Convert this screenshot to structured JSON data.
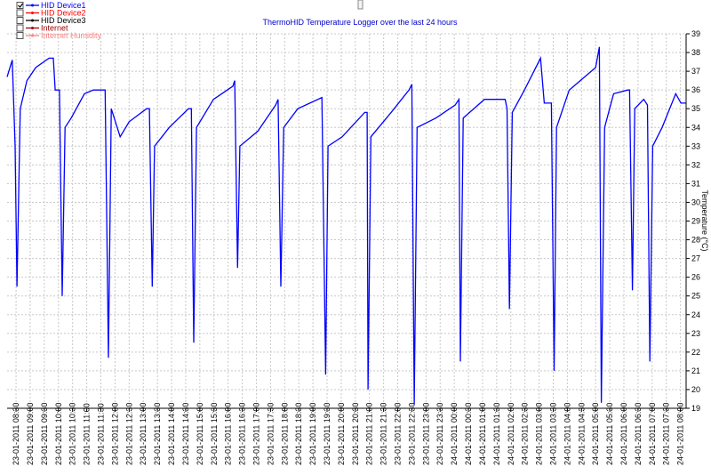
{
  "chart_data": {
    "type": "line",
    "title": "ThermoHID Temperature Logger over the last 24 hours",
    "y_label": "Temperature (°C)",
    "xlim": [
      "23-01-2011 08:11",
      "24-01-2011 08:12"
    ],
    "xticks": [
      "23-01-2011 08:30",
      "23-01-2011 09:00",
      "23-01-2011 09:30",
      "23-01-2011 10:00",
      "23-01-2011 10:30",
      "23-01-2011 11:00",
      "23-01-2011 11:30",
      "23-01-2011 12:00",
      "23-01-2011 12:30",
      "23-01-2011 13:00",
      "23-01-2011 13:30",
      "23-01-2011 14:00",
      "23-01-2011 14:30",
      "23-01-2011 15:00",
      "23-01-2011 15:30",
      "23-01-2011 16:00",
      "23-01-2011 16:30",
      "23-01-2011 17:00",
      "23-01-2011 17:30",
      "23-01-2011 18:00",
      "23-01-2011 18:30",
      "23-01-2011 19:00",
      "23-01-2011 19:30",
      "23-01-2011 20:00",
      "23-01-2011 20:30",
      "23-01-2011 21:00",
      "23-01-2011 21:30",
      "23-01-2011 22:00",
      "23-01-2011 22:30",
      "23-01-2011 23:00",
      "23-01-2011 23:30",
      "24-01-2011 00:00",
      "24-01-2011 00:30",
      "24-01-2011 01:00",
      "24-01-2011 01:30",
      "24-01-2011 02:00",
      "24-01-2011 02:30",
      "24-01-2011 03:00",
      "24-01-2011 03:30",
      "24-01-2011 04:00",
      "24-01-2011 04:30",
      "24-01-2011 05:00",
      "24-01-2011 05:30",
      "24-01-2011 06:00",
      "24-01-2011 06:30",
      "24-01-2011 07:00",
      "24-01-2011 07:30",
      "24-01-2011 08:00"
    ],
    "ylim": [
      19,
      39
    ],
    "yticks": [
      19,
      20,
      21,
      22,
      23,
      24,
      25,
      26,
      27,
      28,
      29,
      30,
      31,
      32,
      33,
      34,
      35,
      36,
      37,
      38,
      39
    ],
    "grid": true,
    "series": [
      {
        "name": "HID Device1",
        "color": "#0000ff",
        "checked": true,
        "x": [
          "23-01-2011 08:11",
          "23-01-2011 08:22",
          "23-01-2011 08:28",
          "23-01-2011 08:32",
          "23-01-2011 08:39",
          "23-01-2011 08:53",
          "23-01-2011 09:12",
          "23-01-2011 09:40",
          "23-01-2011 09:49",
          "23-01-2011 09:53",
          "23-01-2011 10:02",
          "23-01-2011 10:08",
          "23-01-2011 10:14",
          "23-01-2011 10:27",
          "23-01-2011 10:55",
          "23-01-2011 11:14",
          "23-01-2011 11:39",
          "23-01-2011 11:46",
          "23-01-2011 11:52",
          "23-01-2011 12:11",
          "23-01-2011 12:30",
          "23-01-2011 13:07",
          "23-01-2011 13:13",
          "23-01-2011 13:19",
          "23-01-2011 13:24",
          "23-01-2011 13:55",
          "23-01-2011 14:36",
          "23-01-2011 14:42",
          "23-01-2011 14:47",
          "23-01-2011 14:53",
          "23-01-2011 15:29",
          "23-01-2011 16:10",
          "23-01-2011 16:14",
          "23-01-2011 16:20",
          "23-01-2011 16:25",
          "23-01-2011 17:03",
          "23-01-2011 17:41",
          "23-01-2011 17:46",
          "23-01-2011 17:52",
          "23-01-2011 17:58",
          "23-01-2011 18:28",
          "23-01-2011 19:19",
          "23-01-2011 19:27",
          "23-01-2011 19:32",
          "23-01-2011 20:02",
          "23-01-2011 20:50",
          "23-01-2011 20:55",
          "23-01-2011 20:57",
          "23-01-2011 21:03",
          "23-01-2011 21:46",
          "23-01-2011 22:24",
          "23-01-2011 22:30",
          "23-01-2011 22:35",
          "23-01-2011 22:41",
          "23-01-2011 23:21",
          "24-01-2011 00:02",
          "24-01-2011 00:10",
          "24-01-2011 00:13",
          "24-01-2011 00:19",
          "24-01-2011 01:04",
          "24-01-2011 01:48",
          "24-01-2011 01:52",
          "24-01-2011 01:57",
          "24-01-2011 02:03",
          "24-01-2011 02:29",
          "24-01-2011 03:03",
          "24-01-2011 03:11",
          "24-01-2011 03:26",
          "24-01-2011 03:32",
          "24-01-2011 03:37",
          "24-01-2011 04:04",
          "24-01-2011 05:00",
          "24-01-2011 05:08",
          "24-01-2011 05:12",
          "24-01-2011 05:19",
          "24-01-2011 05:38",
          "24-01-2011 06:08",
          "24-01-2011 06:12",
          "24-01-2011 06:18",
          "24-01-2011 06:23",
          "24-01-2011 06:42",
          "24-01-2011 06:50",
          "24-01-2011 06:55",
          "24-01-2011 07:01",
          "24-01-2011 07:21",
          "24-01-2011 07:50",
          "24-01-2011 08:01",
          "24-01-2011 08:12"
        ],
        "values": [
          36.7,
          37.6,
          33,
          25.5,
          35,
          36.5,
          37.2,
          37.7,
          37.7,
          36,
          36,
          25,
          34,
          34.5,
          35.8,
          36,
          36,
          21.7,
          35,
          33.5,
          34.3,
          35,
          35,
          25.5,
          33,
          34,
          35,
          35,
          22.5,
          34,
          35.5,
          36.2,
          36.5,
          26.5,
          33,
          33.8,
          35.2,
          35.5,
          25.5,
          34,
          35,
          35.6,
          20.8,
          33,
          33.5,
          34.8,
          34.8,
          20,
          33.5,
          34.8,
          36,
          36.3,
          19.2,
          34,
          34.5,
          35.2,
          35.5,
          21.5,
          34.5,
          35.5,
          35.5,
          35,
          24.3,
          34.8,
          36,
          37.7,
          35.3,
          35.3,
          21,
          34,
          36,
          37.2,
          38.3,
          19.3,
          34,
          35.8,
          36,
          36,
          25.3,
          35,
          35.5,
          35.2,
          21.5,
          33,
          34,
          35.8,
          35.3,
          35.3
        ]
      },
      {
        "name": "HID Device2",
        "color": "#ff0000",
        "checked": false,
        "x": [],
        "values": []
      },
      {
        "name": "HID Device3",
        "color": "#000000",
        "checked": false,
        "x": [],
        "values": []
      },
      {
        "name": "Internet",
        "color": "#a00000",
        "checked": false,
        "x": [],
        "values": []
      },
      {
        "name": "Internet Humidity",
        "color": "#ff8080",
        "checked": false,
        "x": [],
        "values": []
      }
    ]
  }
}
